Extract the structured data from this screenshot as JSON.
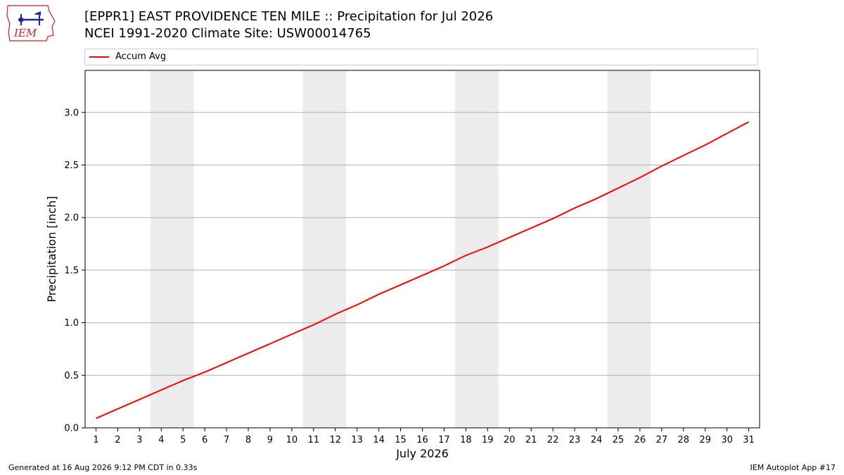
{
  "header": {
    "title_line1": "[EPPR1] EAST PROVIDENCE TEN MILE :: Precipitation for Jul 2026",
    "title_line2": "NCEI 1991-2020 Climate Site: USW00014765",
    "logo_text": "IEM"
  },
  "footer": {
    "generated": "Generated at 16 Aug 2026 9:12 PM CDT in 0.33s",
    "app": "IEM Autoplot App #17"
  },
  "colors": {
    "series": "#ff0000",
    "weekend_band": "#ececec",
    "grid": "#b0b0b0",
    "logo": "#cc2222"
  },
  "chart_data": {
    "type": "line",
    "title": "[EPPR1] EAST PROVIDENCE TEN MILE :: Precipitation for Jul 2026",
    "subtitle": "NCEI 1991-2020 Climate Site: USW00014765",
    "xlabel": "July 2026",
    "ylabel": "Precipitation [inch]",
    "x": [
      1,
      2,
      3,
      4,
      5,
      6,
      7,
      8,
      9,
      10,
      11,
      12,
      13,
      14,
      15,
      16,
      17,
      18,
      19,
      20,
      21,
      22,
      23,
      24,
      25,
      26,
      27,
      28,
      29,
      30,
      31
    ],
    "x_tick_labels": [
      "1",
      "2",
      "3",
      "4",
      "5",
      "6",
      "7",
      "8",
      "9",
      "10",
      "11",
      "12",
      "13",
      "14",
      "15",
      "16",
      "17",
      "18",
      "19",
      "20",
      "21",
      "22",
      "23",
      "24",
      "25",
      "26",
      "27",
      "28",
      "29",
      "30",
      "31"
    ],
    "xlim": [
      0.5,
      31.5
    ],
    "ylim": [
      0,
      3.4
    ],
    "y_ticks": [
      0.0,
      0.5,
      1.0,
      1.5,
      2.0,
      2.5,
      3.0
    ],
    "y_tick_labels": [
      "0.0",
      "0.5",
      "1.0",
      "1.5",
      "2.0",
      "2.5",
      "3.0"
    ],
    "grid": "horizontal",
    "legend_position": "top",
    "weekend_spans": [
      [
        3.5,
        5.5
      ],
      [
        10.5,
        12.5
      ],
      [
        17.5,
        19.5
      ],
      [
        24.5,
        26.5
      ]
    ],
    "series": [
      {
        "name": "Accum Avg",
        "color": "#ff0000",
        "values": [
          0.09,
          0.18,
          0.27,
          0.36,
          0.45,
          0.53,
          0.62,
          0.71,
          0.8,
          0.89,
          0.98,
          1.08,
          1.17,
          1.27,
          1.36,
          1.45,
          1.54,
          1.64,
          1.72,
          1.81,
          1.9,
          1.99,
          2.09,
          2.18,
          2.28,
          2.38,
          2.49,
          2.59,
          2.69,
          2.8,
          2.91
        ]
      }
    ]
  }
}
